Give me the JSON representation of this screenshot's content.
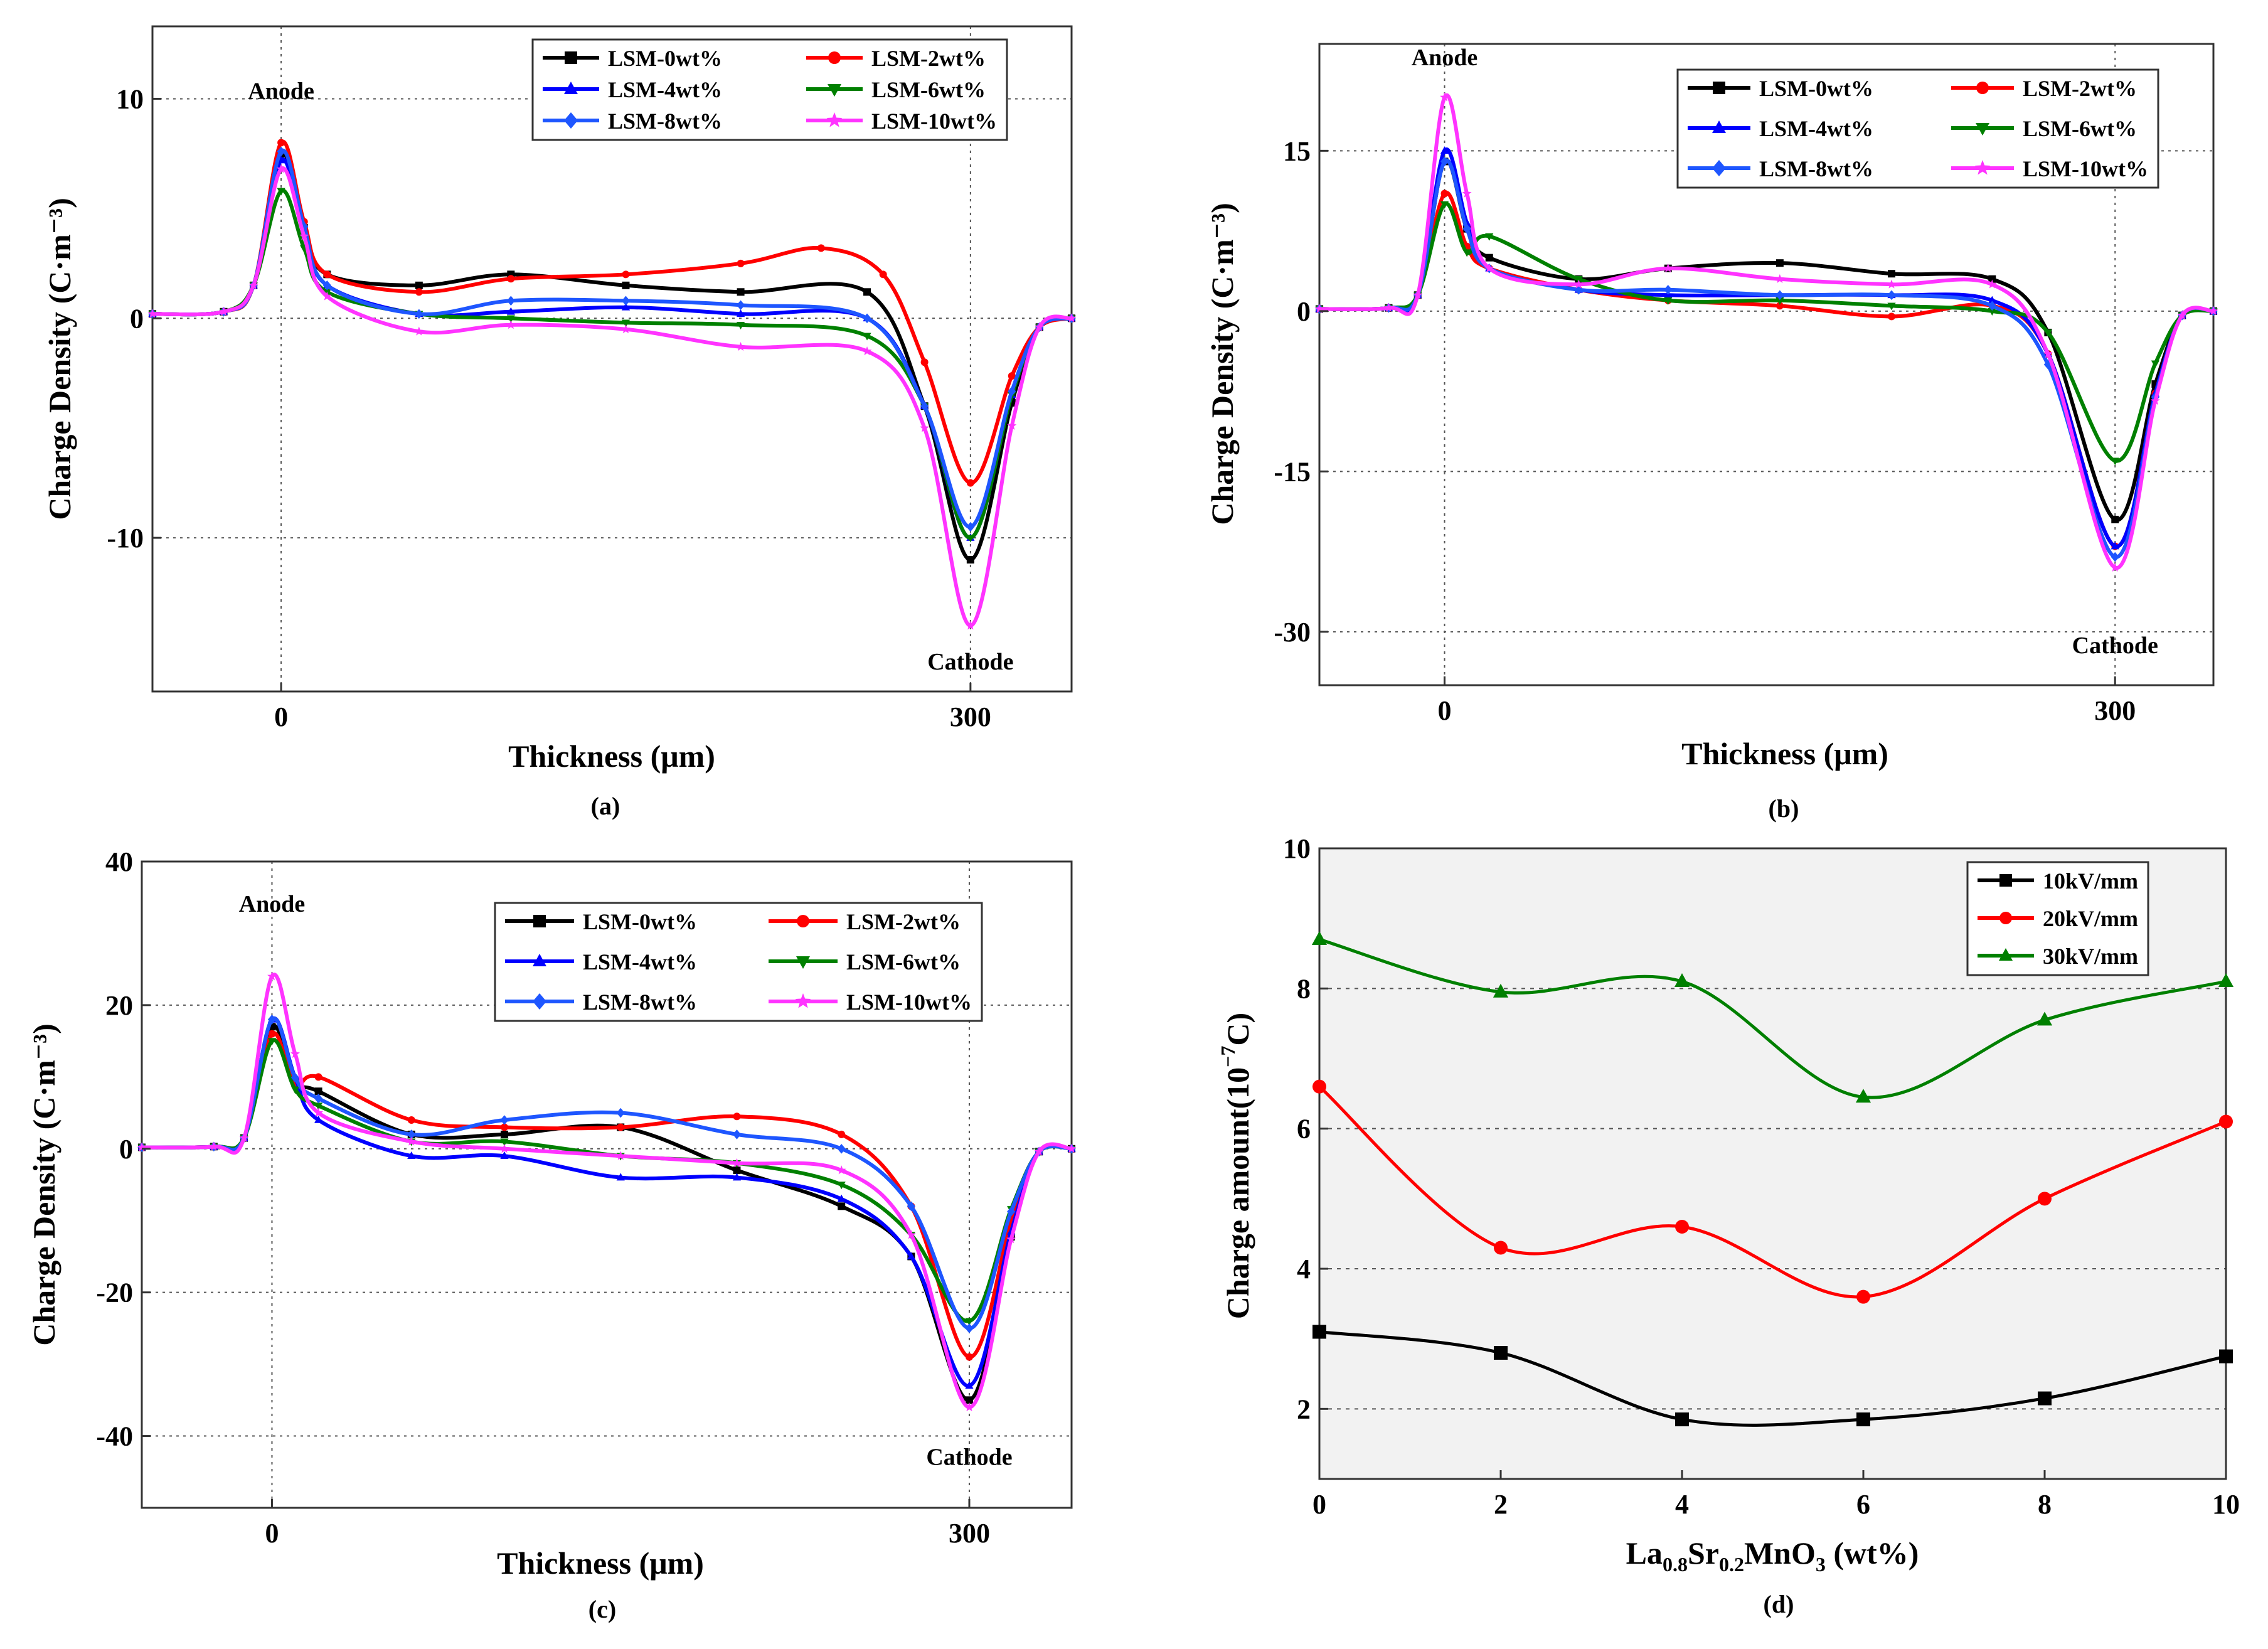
{
  "chart_data": [
    {
      "id": "a",
      "type": "line",
      "caption": "(a)",
      "xlabel": "Thickness (μm)",
      "ylabel": "Charge Density  (C·m⁻³)",
      "xlim": [
        -56,
        344
      ],
      "ylim": [
        -17,
        13.3
      ],
      "xticks": [
        0,
        300
      ],
      "xtick_labels": [
        "0",
        "300"
      ],
      "yticks": [
        -10,
        0,
        10
      ],
      "ytick_labels": [
        "-10",
        "0",
        "10"
      ],
      "annotations": [
        {
          "text": "Anode",
          "x": 0,
          "y": 10
        },
        {
          "text": "Cathode",
          "x": 300,
          "y": -16
        }
      ],
      "series": [
        {
          "name": "LSM-0wt%",
          "color": "#000000",
          "marker": "square",
          "peak": 7.5,
          "trough": -11,
          "plateau": [
            [
              20,
              2
            ],
            [
              60,
              1.5
            ],
            [
              100,
              2
            ],
            [
              150,
              1.5
            ],
            [
              200,
              1.2
            ],
            [
              255,
              1.2
            ],
            [
              280,
              -4
            ]
          ]
        },
        {
          "name": "LSM-2wt%",
          "color": "#ff0000",
          "marker": "circle",
          "peak": 8,
          "trough": -7.5,
          "plateau": [
            [
              20,
              2
            ],
            [
              60,
              1.2
            ],
            [
              100,
              1.8
            ],
            [
              150,
              2
            ],
            [
              200,
              2.5
            ],
            [
              235,
              3.2
            ],
            [
              262,
              2
            ],
            [
              280,
              -2
            ]
          ]
        },
        {
          "name": "LSM-4wt%",
          "color": "#0000ff",
          "marker": "triangle",
          "peak": 7.2,
          "trough": -10,
          "plateau": [
            [
              20,
              1.5
            ],
            [
              60,
              0.2
            ],
            [
              100,
              0.3
            ],
            [
              150,
              0.5
            ],
            [
              200,
              0.2
            ],
            [
              255,
              0
            ],
            [
              280,
              -4
            ]
          ]
        },
        {
          "name": "LSM-6wt%",
          "color": "#008000",
          "marker": "triangle-down",
          "peak": 5.8,
          "trough": -10,
          "plateau": [
            [
              20,
              1.2
            ],
            [
              60,
              0.2
            ],
            [
              100,
              0
            ],
            [
              150,
              -0.2
            ],
            [
              200,
              -0.3
            ],
            [
              255,
              -0.8
            ],
            [
              280,
              -4
            ]
          ]
        },
        {
          "name": "LSM-8wt%",
          "color": "#1e56ff",
          "marker": "diamond",
          "peak": 7.6,
          "trough": -9.5,
          "plateau": [
            [
              20,
              1.5
            ],
            [
              60,
              0.2
            ],
            [
              100,
              0.8
            ],
            [
              150,
              0.8
            ],
            [
              200,
              0.6
            ],
            [
              255,
              0
            ],
            [
              280,
              -4
            ]
          ]
        },
        {
          "name": "LSM-10wt%",
          "color": "#ff33ff",
          "marker": "star",
          "peak": 6.8,
          "trough": -14,
          "plateau": [
            [
              20,
              1
            ],
            [
              60,
              -0.6
            ],
            [
              100,
              -0.3
            ],
            [
              150,
              -0.5
            ],
            [
              200,
              -1.3
            ],
            [
              255,
              -1.5
            ],
            [
              280,
              -5
            ]
          ]
        }
      ]
    },
    {
      "id": "b",
      "type": "line",
      "caption": "(b)",
      "xlabel": "Thickness (μm)",
      "ylabel": "Charge Density  (C·m⁻³)",
      "xlim": [
        -56,
        344
      ],
      "ylim": [
        -35,
        25
      ],
      "xticks": [
        0,
        300
      ],
      "xtick_labels": [
        "0",
        "300"
      ],
      "yticks": [
        -30,
        -15,
        0,
        15
      ],
      "ytick_labels": [
        "-30",
        "-15",
        "0",
        "15"
      ],
      "annotations": [
        {
          "text": "Anode",
          "x": 0,
          "y": 23
        },
        {
          "text": "Cathode",
          "x": 300,
          "y": -32
        }
      ],
      "series": [
        {
          "name": "LSM-0wt%",
          "color": "#000000",
          "marker": "square",
          "peak": 14,
          "trough": -19.5,
          "plateau": [
            [
              20,
              5
            ],
            [
              60,
              3
            ],
            [
              100,
              4
            ],
            [
              150,
              4.5
            ],
            [
              200,
              3.5
            ],
            [
              245,
              3
            ],
            [
              270,
              -2
            ]
          ]
        },
        {
          "name": "LSM-2wt%",
          "color": "#ff0000",
          "marker": "circle",
          "peak": 11,
          "trough": -22,
          "plateau": [
            [
              20,
              4
            ],
            [
              60,
              2
            ],
            [
              100,
              1
            ],
            [
              150,
              0.5
            ],
            [
              200,
              -0.5
            ],
            [
              245,
              0.5
            ],
            [
              270,
              -4
            ]
          ]
        },
        {
          "name": "LSM-4wt%",
          "color": "#0000ff",
          "marker": "triangle",
          "peak": 15,
          "trough": -22,
          "plateau": [
            [
              20,
              4
            ],
            [
              60,
              2
            ],
            [
              100,
              1.5
            ],
            [
              150,
              1.5
            ],
            [
              200,
              1.5
            ],
            [
              245,
              1
            ],
            [
              270,
              -4
            ]
          ]
        },
        {
          "name": "LSM-6wt%",
          "color": "#008000",
          "marker": "triangle-down",
          "peak": 10,
          "trough": -14,
          "plateau": [
            [
              20,
              7
            ],
            [
              60,
              3
            ],
            [
              100,
              1
            ],
            [
              150,
              1
            ],
            [
              200,
              0.5
            ],
            [
              245,
              0
            ],
            [
              270,
              -2
            ]
          ]
        },
        {
          "name": "LSM-8wt%",
          "color": "#1e56ff",
          "marker": "diamond",
          "peak": 14,
          "trough": -23,
          "plateau": [
            [
              20,
              4
            ],
            [
              60,
              2
            ],
            [
              100,
              2
            ],
            [
              150,
              1.5
            ],
            [
              200,
              1.5
            ],
            [
              245,
              0.5
            ],
            [
              270,
              -5
            ]
          ]
        },
        {
          "name": "LSM-10wt%",
          "color": "#ff33ff",
          "marker": "star",
          "peak": 20,
          "trough": -24,
          "plateau": [
            [
              20,
              4
            ],
            [
              60,
              2.5
            ],
            [
              100,
              4
            ],
            [
              150,
              3
            ],
            [
              200,
              2.5
            ],
            [
              245,
              2.5
            ],
            [
              270,
              -4
            ]
          ]
        }
      ]
    },
    {
      "id": "c",
      "type": "line",
      "caption": "(c)",
      "xlabel": "Thickness (μm)",
      "ylabel": "Charge Density  (C·m⁻³)",
      "xlim": [
        -56,
        344
      ],
      "ylim": [
        -50,
        40
      ],
      "xticks": [
        0,
        300
      ],
      "xtick_labels": [
        "0",
        "300"
      ],
      "yticks": [
        -40,
        -20,
        0,
        20,
        40
      ],
      "ytick_labels": [
        "-40",
        "-20",
        "0",
        "20",
        "40"
      ],
      "annotations": [
        {
          "text": "Anode",
          "x": 0,
          "y": 33
        },
        {
          "text": "Cathode",
          "x": 300,
          "y": -44
        }
      ],
      "series": [
        {
          "name": "LSM-0wt%",
          "color": "#000000",
          "marker": "square",
          "peak": 17,
          "trough": -35,
          "plateau": [
            [
              20,
              8
            ],
            [
              60,
              2
            ],
            [
              100,
              2
            ],
            [
              150,
              3
            ],
            [
              200,
              -3
            ],
            [
              245,
              -8
            ],
            [
              275,
              -15
            ]
          ]
        },
        {
          "name": "LSM-2wt%",
          "color": "#ff0000",
          "marker": "circle",
          "peak": 16,
          "trough": -29,
          "plateau": [
            [
              20,
              10
            ],
            [
              60,
              4
            ],
            [
              100,
              3
            ],
            [
              150,
              3
            ],
            [
              200,
              4.5
            ],
            [
              245,
              2
            ],
            [
              275,
              -8
            ]
          ]
        },
        {
          "name": "LSM-4wt%",
          "color": "#0000ff",
          "marker": "triangle",
          "peak": 18,
          "trough": -33,
          "plateau": [
            [
              20,
              4
            ],
            [
              60,
              -1
            ],
            [
              100,
              -1
            ],
            [
              150,
              -4
            ],
            [
              200,
              -4
            ],
            [
              245,
              -7
            ],
            [
              275,
              -15
            ]
          ]
        },
        {
          "name": "LSM-6wt%",
          "color": "#008000",
          "marker": "triangle-down",
          "peak": 15,
          "trough": -24,
          "plateau": [
            [
              20,
              6
            ],
            [
              60,
              1
            ],
            [
              100,
              1
            ],
            [
              150,
              -1
            ],
            [
              200,
              -2
            ],
            [
              245,
              -5
            ],
            [
              275,
              -12
            ]
          ]
        },
        {
          "name": "LSM-8wt%",
          "color": "#1e56ff",
          "marker": "diamond",
          "peak": 18,
          "trough": -25,
          "plateau": [
            [
              20,
              7
            ],
            [
              60,
              2
            ],
            [
              100,
              4
            ],
            [
              150,
              5
            ],
            [
              200,
              2
            ],
            [
              245,
              0
            ],
            [
              275,
              -8
            ]
          ]
        },
        {
          "name": "LSM-10wt%",
          "color": "#ff33ff",
          "marker": "star",
          "peak": 24,
          "trough": -36,
          "plateau": [
            [
              20,
              5
            ],
            [
              60,
              1
            ],
            [
              100,
              0
            ],
            [
              150,
              -1
            ],
            [
              200,
              -2
            ],
            [
              245,
              -3
            ],
            [
              275,
              -12
            ]
          ]
        }
      ]
    },
    {
      "id": "d",
      "type": "line",
      "caption": "(d)",
      "xlabel": "La0.8Sr0.2MnO3 (wt%)",
      "xlabel_parts": {
        "a": "La",
        "s1": "0.8",
        "b": "Sr",
        "s2": "0.2",
        "c": "MnO",
        "s3": "3",
        "d": " (wt%)"
      },
      "ylabel": "Charge amount(10⁻⁷C)",
      "ylabel_parts": {
        "a": "Charge amount(10",
        "sup": "−7",
        "b": "C)"
      },
      "xlim": [
        0,
        10
      ],
      "ylim": [
        1,
        10
      ],
      "xticks": [
        0,
        2,
        4,
        6,
        8,
        10
      ],
      "xtick_labels": [
        "0",
        "2",
        "4",
        "6",
        "8",
        "10"
      ],
      "yticks": [
        2,
        4,
        6,
        8,
        10
      ],
      "ytick_labels": [
        "2",
        "4",
        "6",
        "8",
        "10"
      ],
      "grid": true,
      "legend": "top-right",
      "x": [
        0,
        2,
        4,
        6,
        8,
        10
      ],
      "series": [
        {
          "name": "10kV/mm",
          "color": "#000000",
          "marker": "square",
          "values": [
            3.1,
            2.8,
            1.85,
            1.85,
            2.15,
            2.75
          ]
        },
        {
          "name": "20kV/mm",
          "color": "#ff0000",
          "marker": "circle",
          "values": [
            6.6,
            4.3,
            4.6,
            3.6,
            5.0,
            6.1
          ]
        },
        {
          "name": "30kV/mm",
          "color": "#008000",
          "marker": "triangle",
          "values": [
            8.7,
            7.95,
            8.1,
            6.45,
            7.55,
            8.1
          ]
        }
      ]
    }
  ]
}
